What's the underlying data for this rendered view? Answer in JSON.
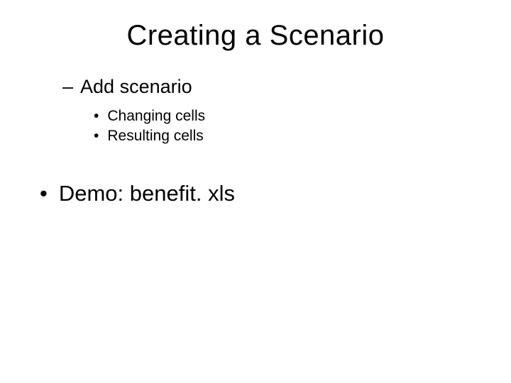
{
  "slide": {
    "title": "Creating a Scenario",
    "level1": {
      "item1": "Add scenario"
    },
    "level2": {
      "item1": "Changing cells",
      "item2": "Resulting cells"
    },
    "level0": {
      "item1": "Demo: benefit. xls"
    },
    "bullets": {
      "dash": "–",
      "dot": "•"
    },
    "colors": {
      "background": "#ffffff",
      "text": "#000000"
    },
    "typography": {
      "title_fontsize": 40,
      "level0_fontsize": 31,
      "level1_fontsize": 27,
      "level2_fontsize": 21,
      "font_family": "Arial"
    }
  }
}
